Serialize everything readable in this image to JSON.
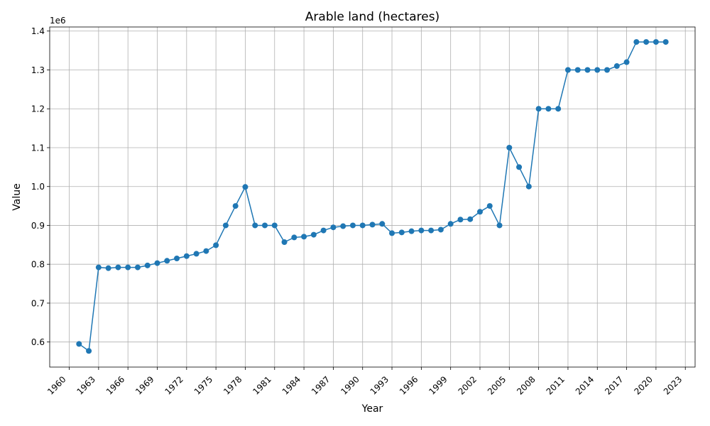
{
  "chart_data": {
    "type": "line",
    "title": "Arable land (hectares)",
    "xlabel": "Year",
    "ylabel": "Value",
    "y_offset_text": "1e6",
    "xlim": [
      1958.0,
      2024.0
    ],
    "ylim": [
      0.5355,
      1.4105
    ],
    "y_scale_factor": 1000000,
    "x_ticks": [
      1960,
      1963,
      1966,
      1969,
      1972,
      1975,
      1978,
      1981,
      1984,
      1987,
      1990,
      1993,
      1996,
      1999,
      2002,
      2005,
      2008,
      2011,
      2014,
      2017,
      2020,
      2023
    ],
    "y_ticks": [
      0.6,
      0.7,
      0.8,
      0.9,
      1.0,
      1.1,
      1.2,
      1.3,
      1.4
    ],
    "y_tick_labels": [
      "0.6",
      "0.7",
      "0.8",
      "0.9",
      "1.0",
      "1.1",
      "1.2",
      "1.3",
      "1.4"
    ],
    "grid": true,
    "series": [
      {
        "color": "#1f77b4",
        "x": [
          1961,
          1962,
          1963,
          1964,
          1965,
          1966,
          1967,
          1968,
          1969,
          1970,
          1971,
          1972,
          1973,
          1974,
          1975,
          1976,
          1977,
          1978,
          1979,
          1980,
          1981,
          1982,
          1983,
          1984,
          1985,
          1986,
          1987,
          1988,
          1989,
          1990,
          1991,
          1992,
          1993,
          1994,
          1995,
          1996,
          1997,
          1998,
          1999,
          2000,
          2001,
          2002,
          2003,
          2004,
          2005,
          2006,
          2007,
          2008,
          2009,
          2010,
          2011,
          2012,
          2013,
          2014,
          2015,
          2016,
          2017,
          2018,
          2019,
          2020,
          2021
        ],
        "y": [
          595000,
          577000,
          792000,
          790000,
          792000,
          792000,
          792000,
          797000,
          803000,
          809000,
          815000,
          821000,
          827000,
          834000,
          849000,
          900000,
          950000,
          999000,
          900000,
          900000,
          900000,
          857000,
          869000,
          871000,
          876000,
          887000,
          895000,
          898000,
          900000,
          900000,
          902000,
          904000,
          880000,
          882000,
          885000,
          887000,
          887000,
          889000,
          904000,
          915000,
          916000,
          935000,
          950000,
          900000,
          1100000,
          1050000,
          1000000,
          1200000,
          1200000,
          1200000,
          1300000,
          1300000,
          1300000,
          1300000,
          1300000,
          1310000,
          1320000,
          1372000,
          1372000,
          1372000,
          1372000
        ]
      }
    ]
  }
}
